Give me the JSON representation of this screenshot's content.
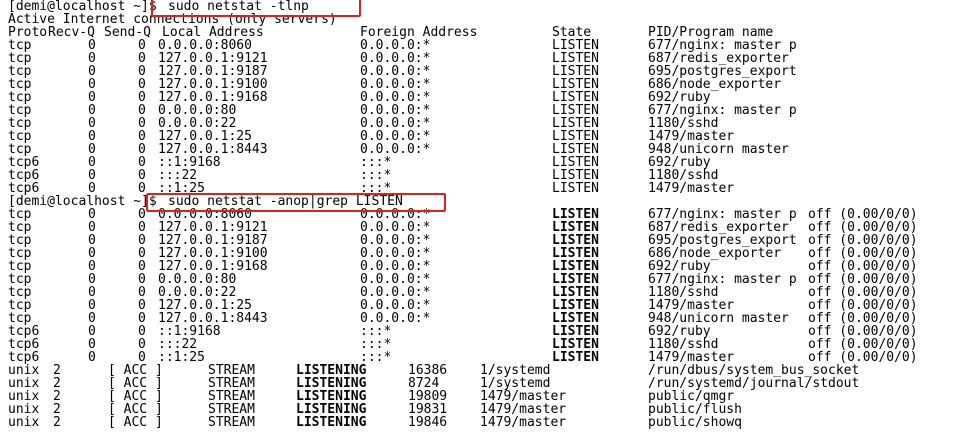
{
  "terminal": {
    "prompt": "[demi@localhost ~]$",
    "commands": [
      "sudo netstat -tlnp",
      "sudo netstat -anop|grep LISTEN"
    ],
    "colors": {
      "background": "#ffffff",
      "text": "#000000",
      "highlight_box": "#e02020"
    },
    "tlnp": {
      "title": "Active Internet connections (only servers)",
      "headers": [
        "Proto",
        "Recv-Q",
        "Send-Q",
        "Local Address",
        "Foreign Address",
        "State",
        "PID/Program name"
      ],
      "rows": [
        [
          "tcp",
          "0",
          "0",
          "0.0.0.0:8060",
          "0.0.0.0:*",
          "LISTEN",
          "677/nginx: master p"
        ],
        [
          "tcp",
          "0",
          "0",
          "127.0.0.1:9121",
          "0.0.0.0:*",
          "LISTEN",
          "687/redis_exporter"
        ],
        [
          "tcp",
          "0",
          "0",
          "127.0.0.1:9187",
          "0.0.0.0:*",
          "LISTEN",
          "695/postgres_export"
        ],
        [
          "tcp",
          "0",
          "0",
          "127.0.0.1:9100",
          "0.0.0.0:*",
          "LISTEN",
          "686/node_exporter"
        ],
        [
          "tcp",
          "0",
          "0",
          "127.0.0.1:9168",
          "0.0.0.0:*",
          "LISTEN",
          "692/ruby"
        ],
        [
          "tcp",
          "0",
          "0",
          "0.0.0.0:80",
          "0.0.0.0:*",
          "LISTEN",
          "677/nginx: master p"
        ],
        [
          "tcp",
          "0",
          "0",
          "0.0.0.0:22",
          "0.0.0.0:*",
          "LISTEN",
          "1180/sshd"
        ],
        [
          "tcp",
          "0",
          "0",
          "127.0.0.1:25",
          "0.0.0.0:*",
          "LISTEN",
          "1479/master"
        ],
        [
          "tcp",
          "0",
          "0",
          "127.0.0.1:8443",
          "0.0.0.0:*",
          "LISTEN",
          "948/unicorn master"
        ],
        [
          "tcp6",
          "0",
          "0",
          "::1:9168",
          ":::*",
          "LISTEN",
          "692/ruby"
        ],
        [
          "tcp6",
          "0",
          "0",
          ":::22",
          ":::*",
          "LISTEN",
          "1180/sshd"
        ],
        [
          "tcp6",
          "0",
          "0",
          "::1:25",
          ":::*",
          "LISTEN",
          "1479/master"
        ]
      ]
    },
    "anop": {
      "inet_rows": [
        [
          "tcp",
          "0",
          "0",
          "0.0.0.0:8060",
          "0.0.0.0:*",
          "LISTEN",
          "677/nginx: master p",
          "off (0.00/0/0)"
        ],
        [
          "tcp",
          "0",
          "0",
          "127.0.0.1:9121",
          "0.0.0.0:*",
          "LISTEN",
          "687/redis_exporter",
          "off (0.00/0/0)"
        ],
        [
          "tcp",
          "0",
          "0",
          "127.0.0.1:9187",
          "0.0.0.0:*",
          "LISTEN",
          "695/postgres_export",
          "off (0.00/0/0)"
        ],
        [
          "tcp",
          "0",
          "0",
          "127.0.0.1:9100",
          "0.0.0.0:*",
          "LISTEN",
          "686/node_exporter",
          "off (0.00/0/0)"
        ],
        [
          "tcp",
          "0",
          "0",
          "127.0.0.1:9168",
          "0.0.0.0:*",
          "LISTEN",
          "692/ruby",
          "off (0.00/0/0)"
        ],
        [
          "tcp",
          "0",
          "0",
          "0.0.0.0:80",
          "0.0.0.0:*",
          "LISTEN",
          "677/nginx: master p",
          "off (0.00/0/0)"
        ],
        [
          "tcp",
          "0",
          "0",
          "0.0.0.0:22",
          "0.0.0.0:*",
          "LISTEN",
          "1180/sshd",
          "off (0.00/0/0)"
        ],
        [
          "tcp",
          "0",
          "0",
          "127.0.0.1:25",
          "0.0.0.0:*",
          "LISTEN",
          "1479/master",
          "off (0.00/0/0)"
        ],
        [
          "tcp",
          "0",
          "0",
          "127.0.0.1:8443",
          "0.0.0.0:*",
          "LISTEN",
          "948/unicorn master",
          "off (0.00/0/0)"
        ],
        [
          "tcp6",
          "0",
          "0",
          "::1:9168",
          ":::*",
          "LISTEN",
          "692/ruby",
          "off (0.00/0/0)"
        ],
        [
          "tcp6",
          "0",
          "0",
          ":::22",
          ":::*",
          "LISTEN",
          "1180/sshd",
          "off (0.00/0/0)"
        ],
        [
          "tcp6",
          "0",
          "0",
          "::1:25",
          ":::*",
          "LISTEN",
          "1479/master",
          "off (0.00/0/0)"
        ]
      ],
      "unix_rows": [
        [
          "unix",
          "2",
          "[ ACC ]",
          "STREAM",
          "LISTENING",
          "16386",
          "1/systemd",
          "/run/dbus/system_bus_socket"
        ],
        [
          "unix",
          "2",
          "[ ACC ]",
          "STREAM",
          "LISTENING",
          "8724",
          "1/systemd",
          "/run/systemd/journal/stdout"
        ],
        [
          "unix",
          "2",
          "[ ACC ]",
          "STREAM",
          "LISTENING",
          "19809",
          "1479/master",
          "public/qmgr"
        ],
        [
          "unix",
          "2",
          "[ ACC ]",
          "STREAM",
          "LISTENING",
          "19831",
          "1479/master",
          "public/flush"
        ],
        [
          "unix",
          "2",
          "[ ACC ]",
          "STREAM",
          "LISTENING",
          "19846",
          "1479/master",
          "public/showq"
        ]
      ]
    }
  }
}
